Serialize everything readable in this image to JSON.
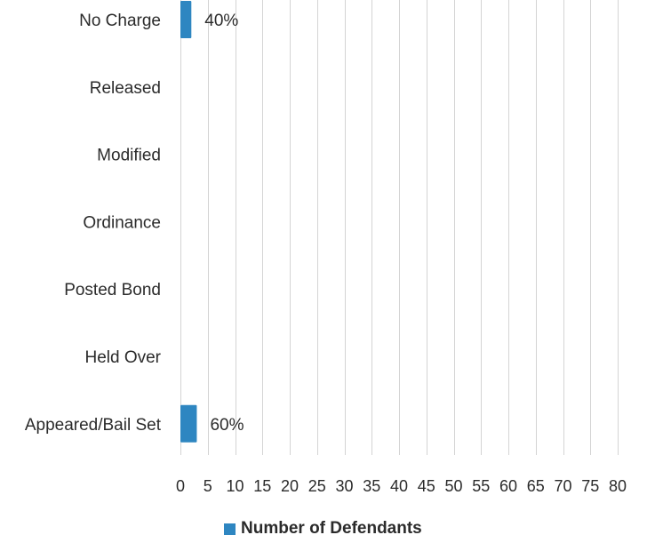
{
  "chart_data": {
    "type": "bar",
    "orientation": "horizontal",
    "categories": [
      "No Charge",
      "Released",
      "Modified",
      "Ordinance",
      "Posted Bond",
      "Held Over",
      "Appeared/Bail Set"
    ],
    "series": [
      {
        "name": "Number of Defendants",
        "color": "#2e86c1",
        "values": [
          2,
          0,
          0,
          0,
          0,
          0,
          3
        ],
        "data_labels": [
          "40%",
          "",
          "",
          "",
          "",
          "",
          "60%"
        ]
      }
    ],
    "xlim": [
      0,
      80
    ],
    "xticks": [
      0,
      5,
      10,
      15,
      20,
      25,
      30,
      35,
      40,
      45,
      50,
      55,
      60,
      65,
      70,
      75,
      80
    ],
    "grid": "vertical",
    "legend_position": "bottom"
  },
  "legend": {
    "label": "Number of Defendants",
    "color": "#2e86c1"
  }
}
